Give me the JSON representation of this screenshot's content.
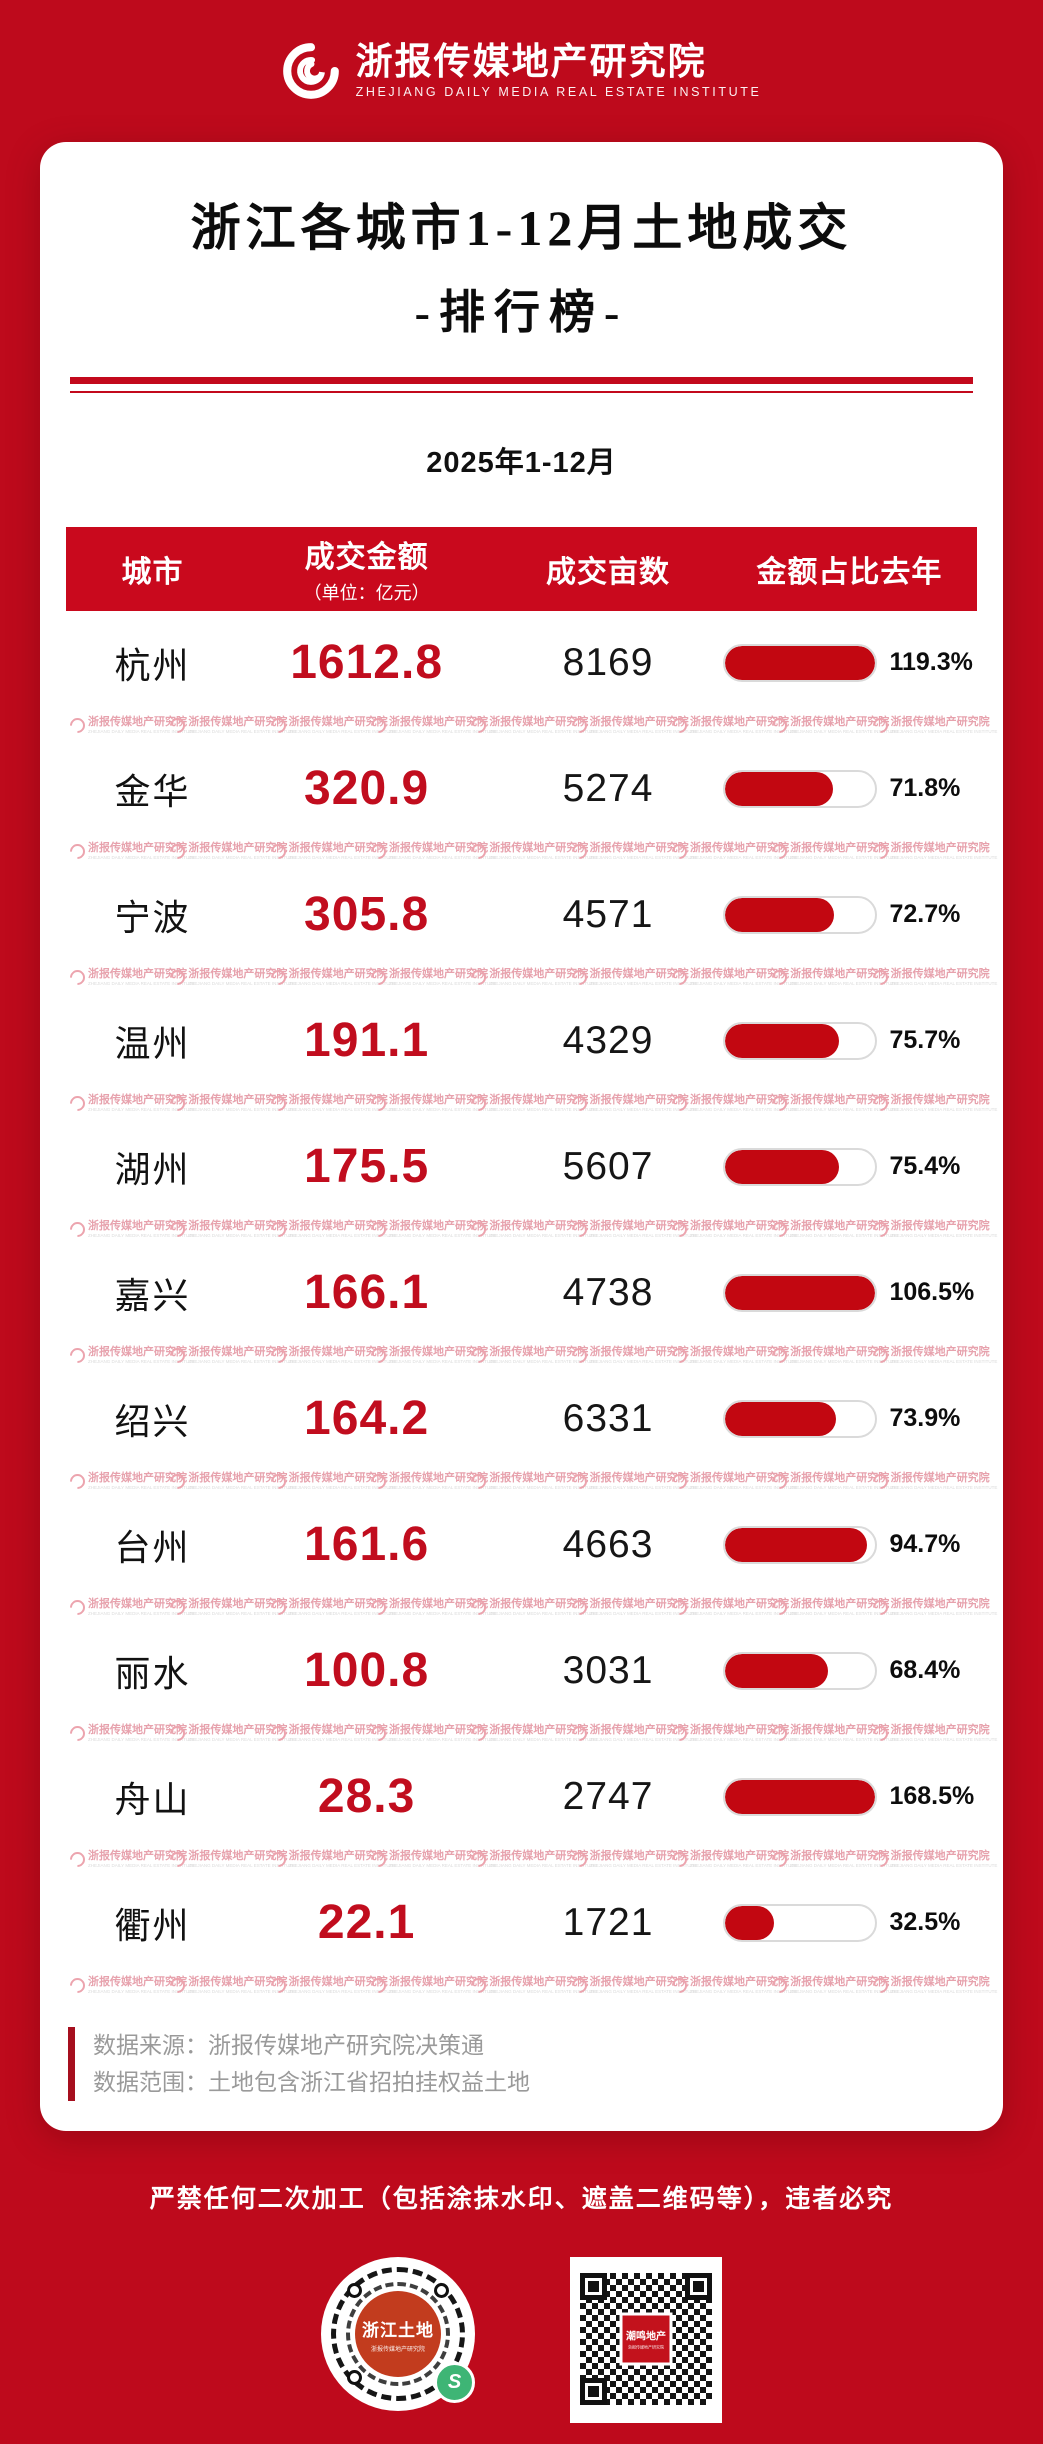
{
  "brand": {
    "name_cn": "浙报传媒地产研究院",
    "name_en": "ZHEJIANG DAILY MEDIA REAL ESTATE INSTITUTE"
  },
  "title": {
    "line1": "浙江各城市1-12月土地成交",
    "line2": "-排行榜-"
  },
  "period": "2025年1-12月",
  "table": {
    "headers": {
      "city": "城市",
      "amount": "成交金额",
      "amount_unit": "（单位：亿元）",
      "mu": "成交亩数",
      "ratio": "金额占比去年"
    },
    "rows": [
      {
        "city": "杭州",
        "amount": "1612.8",
        "mu": "8169",
        "pct_label": "119.3%",
        "pct_value": 119.3
      },
      {
        "city": "金华",
        "amount": "320.9",
        "mu": "5274",
        "pct_label": "71.8%",
        "pct_value": 71.8
      },
      {
        "city": "宁波",
        "amount": "305.8",
        "mu": "4571",
        "pct_label": "72.7%",
        "pct_value": 72.7
      },
      {
        "city": "温州",
        "amount": "191.1",
        "mu": "4329",
        "pct_label": "75.7%",
        "pct_value": 75.7
      },
      {
        "city": "湖州",
        "amount": "175.5",
        "mu": "5607",
        "pct_label": "75.4%",
        "pct_value": 75.4
      },
      {
        "city": "嘉兴",
        "amount": "166.1",
        "mu": "4738",
        "pct_label": "106.5%",
        "pct_value": 106.5
      },
      {
        "city": "绍兴",
        "amount": "164.2",
        "mu": "6331",
        "pct_label": "73.9%",
        "pct_value": 73.9
      },
      {
        "city": "台州",
        "amount": "161.6",
        "mu": "4663",
        "pct_label": "94.7%",
        "pct_value": 94.7
      },
      {
        "city": "丽水",
        "amount": "100.8",
        "mu": "3031",
        "pct_label": "68.4%",
        "pct_value": 68.4
      },
      {
        "city": "舟山",
        "amount": "28.3",
        "mu": "2747",
        "pct_label": "168.5%",
        "pct_value": 168.5
      },
      {
        "city": "衢州",
        "amount": "22.1",
        "mu": "1721",
        "pct_label": "32.5%",
        "pct_value": 32.5
      }
    ]
  },
  "watermark": {
    "cn": "浙报传媒地产研究院",
    "en": "ZHEJIANG DAILY MEDIA REAL ESTATE INSTITUTE",
    "per_row": 9
  },
  "footnotes": [
    "数据来源：浙报传媒地产研究院决策通",
    "数据范围：土地包含浙江省招拍挂权益土地"
  ],
  "warning": "严禁任何二次加工（包括涂抹水印、遮盖二维码等），违者必究",
  "qr": {
    "left": {
      "label": "浙江土地",
      "sublabel": "浙报传媒地产研究院",
      "wechat_glyph": "S"
    },
    "right": {
      "label": "潮鸣地产",
      "sublabel": "浙报传媒地产研究院"
    }
  },
  "colors": {
    "background": "#be0a1c",
    "accent": "#c9091d",
    "number_red": "#c10d1e",
    "bar_fill": "#c20711",
    "footnote_gray": "#9a9a9a"
  },
  "chart_data": {
    "type": "table",
    "title": "浙江各城市1-12月土地成交排行榜",
    "period": "2025年1-12月",
    "columns": [
      "城市",
      "成交金额（亿元）",
      "成交亩数",
      "金额占比去年"
    ],
    "categories": [
      "杭州",
      "金华",
      "宁波",
      "温州",
      "湖州",
      "嘉兴",
      "绍兴",
      "台州",
      "丽水",
      "舟山",
      "衢州"
    ],
    "series": [
      {
        "name": "成交金额（亿元）",
        "values": [
          1612.8,
          320.9,
          305.8,
          191.1,
          175.5,
          166.1,
          164.2,
          161.6,
          100.8,
          28.3,
          22.1
        ]
      },
      {
        "name": "成交亩数",
        "values": [
          8169,
          5274,
          4571,
          4329,
          5607,
          4738,
          6331,
          4663,
          3031,
          2747,
          1721
        ]
      },
      {
        "name": "金额占比去年（%）",
        "values": [
          119.3,
          71.8,
          72.7,
          75.7,
          75.4,
          106.5,
          73.9,
          94.7,
          68.4,
          168.5,
          32.5
        ]
      }
    ],
    "legend_position": "none",
    "grid": false,
    "bar_note": "每行右侧为胶囊形进度条，填充比例 = min(金额占比去年, 100%)"
  }
}
